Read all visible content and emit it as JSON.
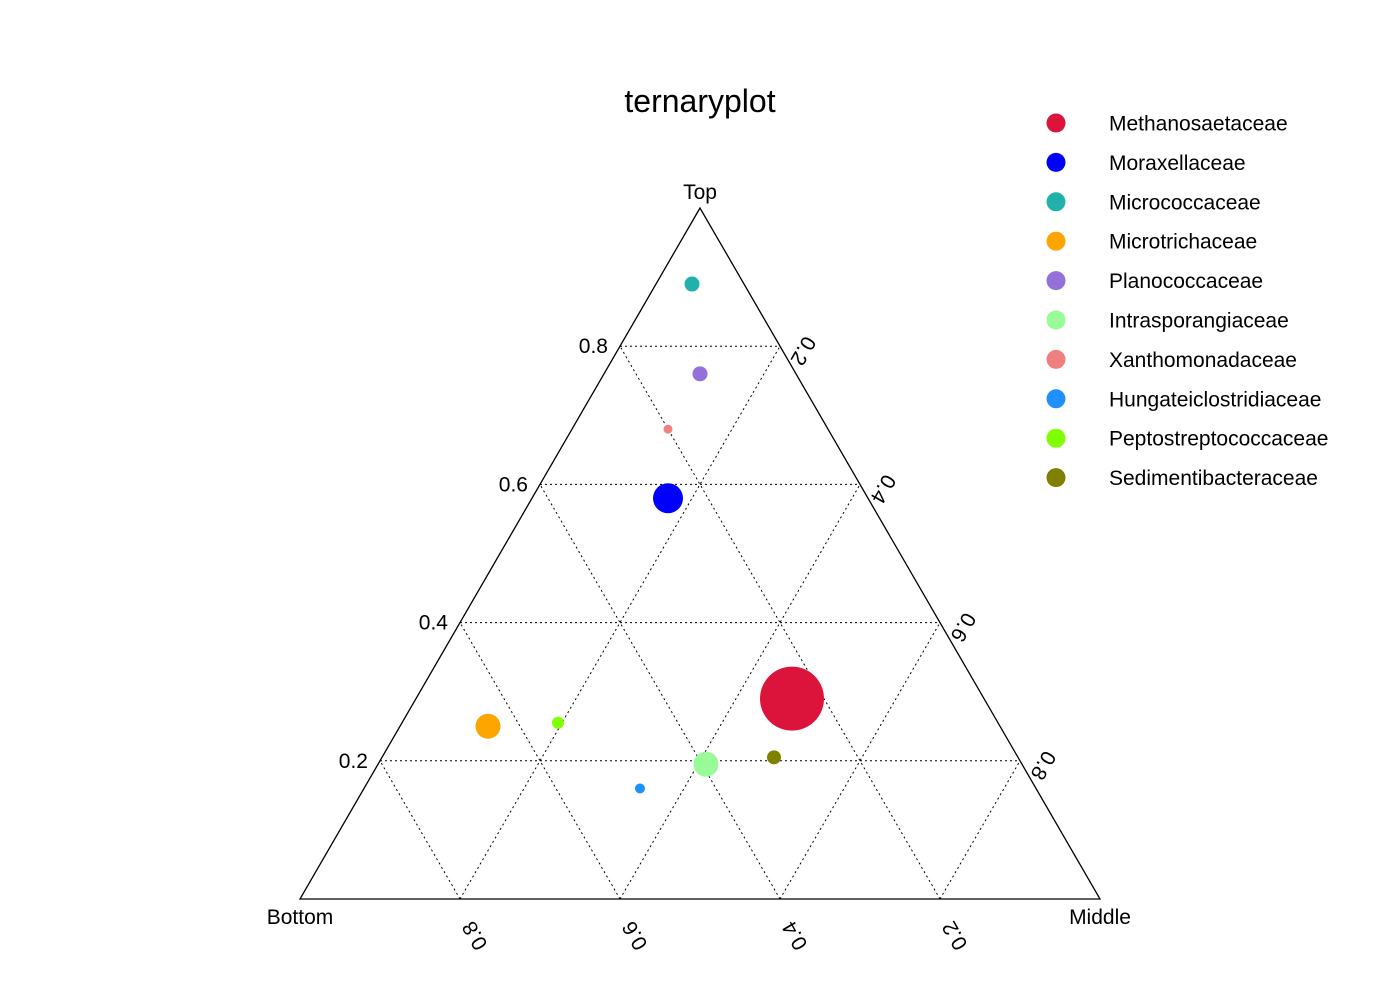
{
  "chart_data": {
    "type": "scatter",
    "subtype": "ternary",
    "title": "ternaryplot",
    "axes": {
      "top": "Top",
      "left": "Bottom",
      "right": "Middle"
    },
    "ticks": [
      0.2,
      0.4,
      0.6,
      0.8
    ],
    "grid": true,
    "grid_style": "dotted",
    "legend_position": "top-right",
    "size_encoding": "relative abundance (unlabeled)",
    "points": [
      {
        "name": "Methanosaetaceae",
        "top": 0.29,
        "bottom": 0.24,
        "middle": 0.47,
        "size": 32,
        "color": "#DC143C"
      },
      {
        "name": "Moraxellaceae",
        "top": 0.58,
        "bottom": 0.25,
        "middle": 0.17,
        "size": 15,
        "color": "#0000FF"
      },
      {
        "name": "Micrococcaceae",
        "top": 0.89,
        "bottom": 0.065,
        "middle": 0.045,
        "size": 7.5,
        "color": "#20B2AA"
      },
      {
        "name": "Microtrichaceae",
        "top": 0.25,
        "bottom": 0.64,
        "middle": 0.11,
        "size": 12.5,
        "color": "#FFA500"
      },
      {
        "name": "Planococcaceae",
        "top": 0.76,
        "bottom": 0.12,
        "middle": 0.12,
        "size": 7.5,
        "color": "#9370DB"
      },
      {
        "name": "Intrasporangiaceae",
        "top": 0.195,
        "bottom": 0.395,
        "middle": 0.41,
        "size": 12.5,
        "color": "#98FB98"
      },
      {
        "name": "Xanthomonadaceae",
        "top": 0.68,
        "bottom": 0.2,
        "middle": 0.12,
        "size": 4.5,
        "color": "#F08080"
      },
      {
        "name": "Hungateiclostridiaceae",
        "top": 0.16,
        "bottom": 0.495,
        "middle": 0.345,
        "size": 5,
        "color": "#1E90FF"
      },
      {
        "name": "Peptostreptococcaceae",
        "top": 0.255,
        "bottom": 0.55,
        "middle": 0.195,
        "size": 6,
        "color": "#7FFF00"
      },
      {
        "name": "Sedimentibacteraceae",
        "top": 0.205,
        "bottom": 0.305,
        "middle": 0.49,
        "size": 7,
        "color": "#808000"
      }
    ]
  }
}
